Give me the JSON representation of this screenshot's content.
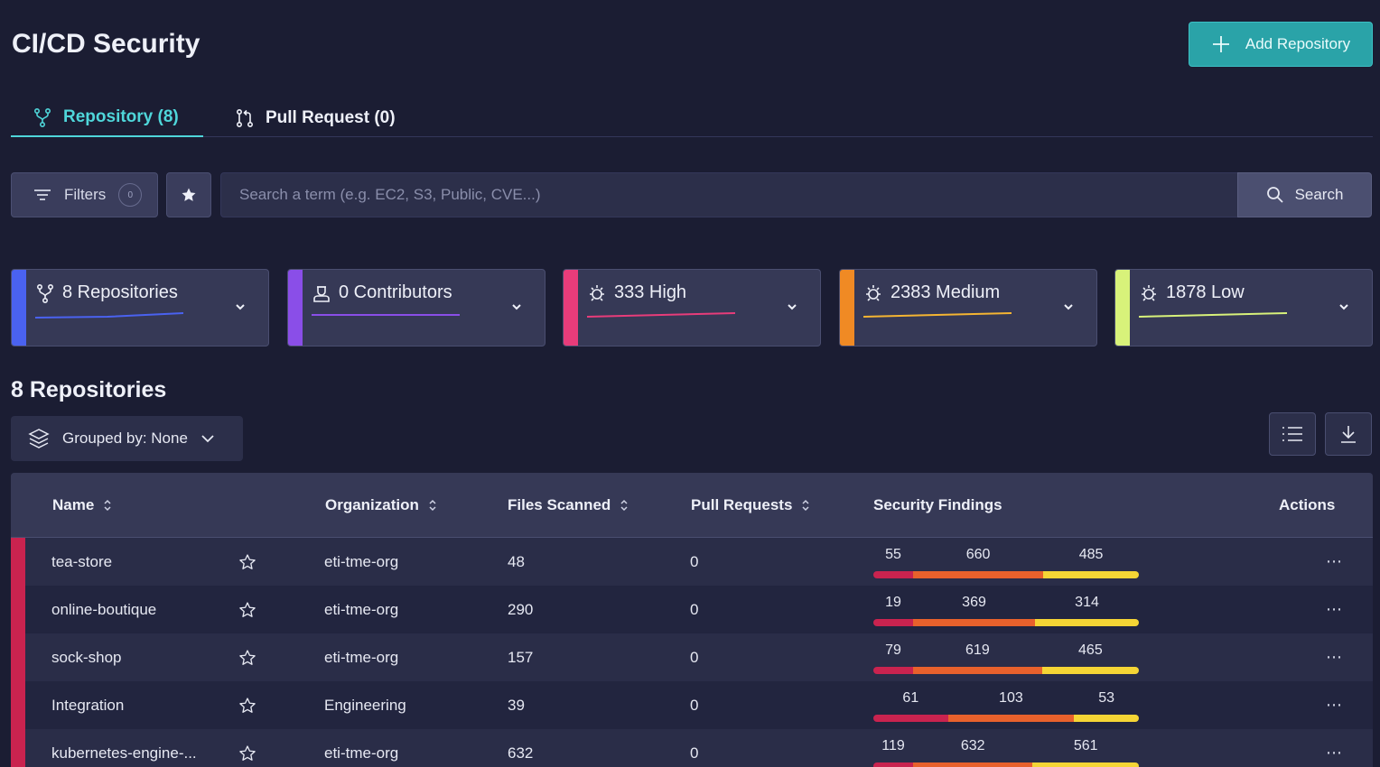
{
  "header": {
    "title": "CI/CD Security",
    "add_button": "Add Repository"
  },
  "tabs": [
    {
      "label": "Repository (8)",
      "active": true,
      "icon": "branch-icon"
    },
    {
      "label": "Pull Request (0)",
      "active": false,
      "icon": "pull-request-icon"
    }
  ],
  "toolbar": {
    "filters_label": "Filters",
    "filters_count": "0",
    "search_placeholder": "Search a term (e.g. EC2, S3, Public, CVE...)",
    "search_label": "Search"
  },
  "summary_cards": [
    {
      "label": "8 Repositories",
      "icon": "branch-icon",
      "color": "#4a62f0"
    },
    {
      "label": "0 Contributors",
      "icon": "contributor-icon",
      "color": "#8a4ee8"
    },
    {
      "label": "333 High",
      "icon": "bug-icon",
      "color": "#e83c7a"
    },
    {
      "label": "2383 Medium",
      "icon": "bug-icon",
      "color": "#f08a24"
    },
    {
      "label": "1878 Low",
      "icon": "bug-icon",
      "color": "#d8f27a"
    }
  ],
  "section": {
    "title": "8 Repositories",
    "group_label": "Grouped by: None"
  },
  "table": {
    "columns": [
      "Name",
      "Organization",
      "Files Scanned",
      "Pull Requests",
      "Security Findings",
      "Actions"
    ],
    "rows": [
      {
        "name": "tea-store",
        "organization": "eti-tme-org",
        "files_scanned": "48",
        "pull_requests": "0",
        "high": "55",
        "medium": "660",
        "low": "485"
      },
      {
        "name": "online-boutique",
        "organization": "eti-tme-org",
        "files_scanned": "290",
        "pull_requests": "0",
        "high": "19",
        "medium": "369",
        "low": "314"
      },
      {
        "name": "sock-shop",
        "organization": "eti-tme-org",
        "files_scanned": "157",
        "pull_requests": "0",
        "high": "79",
        "medium": "619",
        "low": "465"
      },
      {
        "name": "Integration",
        "organization": "Engineering",
        "files_scanned": "39",
        "pull_requests": "0",
        "high": "61",
        "medium": "103",
        "low": "53"
      },
      {
        "name": "kubernetes-engine-...",
        "organization": "eti-tme-org",
        "files_scanned": "632",
        "pull_requests": "0",
        "high": "119",
        "medium": "632",
        "low": "561"
      }
    ]
  },
  "colors": {
    "high": "#c9234f",
    "medium": "#e8612c",
    "low": "#f5d535",
    "accent": "#2aa3a8"
  }
}
